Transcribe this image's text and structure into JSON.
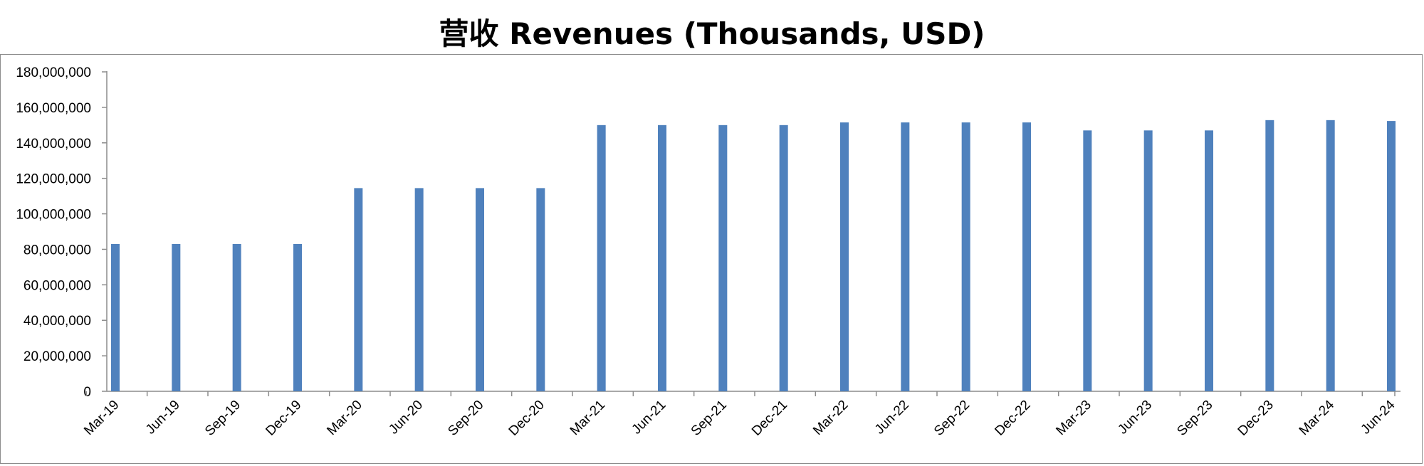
{
  "chart_data": {
    "type": "bar",
    "title": "营收 Revenues (Thousands, USD)",
    "xlabel": "",
    "ylabel": "",
    "ylim": [
      0,
      180000000
    ],
    "yticks": [
      "0",
      "20,000,000",
      "40,000,000",
      "60,000,000",
      "80,000,000",
      "100,000,000",
      "120,000,000",
      "140,000,000",
      "160,000,000",
      "180,000,000"
    ],
    "ytick_values": [
      0,
      20000000,
      40000000,
      60000000,
      80000000,
      100000000,
      120000000,
      140000000,
      160000000,
      180000000
    ],
    "categories": [
      "Mar-19",
      "Jun-19",
      "Sep-19",
      "Dec-19",
      "Mar-20",
      "Jun-20",
      "Sep-20",
      "Dec-20",
      "Mar-21",
      "Jun-21",
      "Sep-21",
      "Dec-21",
      "Mar-22",
      "Jun-22",
      "Sep-22",
      "Dec-22",
      "Mar-23",
      "Jun-23",
      "Sep-23",
      "Dec-23",
      "Mar-24",
      "Jun-24"
    ],
    "values": [
      83000000,
      83000000,
      83000000,
      83000000,
      114500000,
      114500000,
      114500000,
      114500000,
      150000000,
      150000000,
      150000000,
      150000000,
      151500000,
      151500000,
      151500000,
      151500000,
      147000000,
      147000000,
      147000000,
      152800000,
      152800000,
      152300000
    ],
    "grid": false,
    "legend": "none",
    "bar_color": "#4f81bd"
  }
}
